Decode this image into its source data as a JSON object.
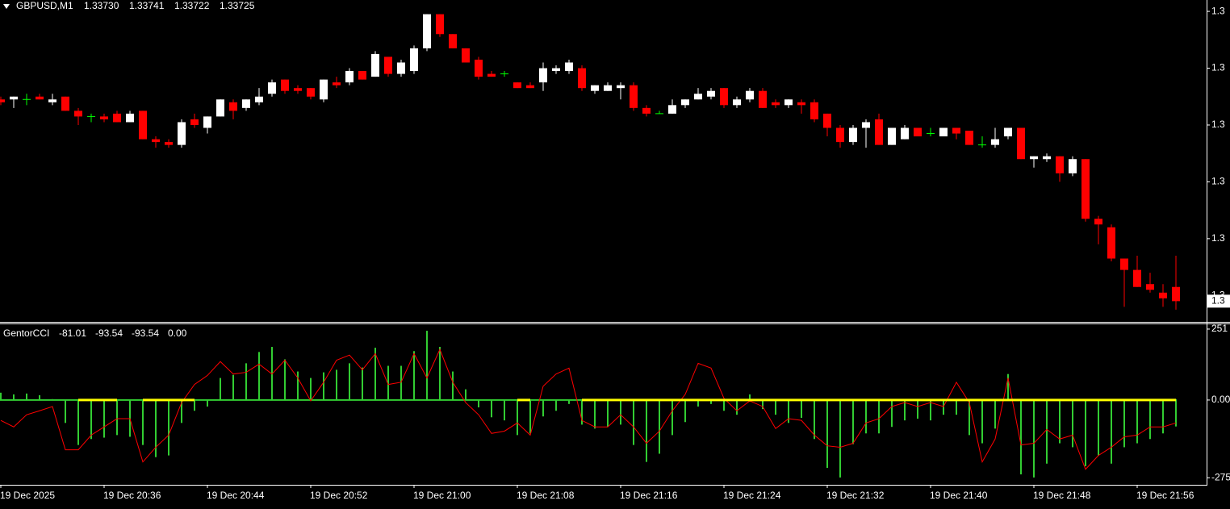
{
  "chart_data": [
    {
      "type": "candlestick",
      "title": "GBPUSD,M1",
      "header_values": [
        1.3373,
        1.33741,
        1.33722,
        1.33725
      ],
      "header_value_labels": [
        "1.33730",
        "1.33741",
        "1.33722",
        "1.33725"
      ],
      "categories": [
        "19 Dec 2025",
        null,
        null,
        null,
        null,
        null,
        null,
        null,
        "19 Dec 20:36",
        null,
        null,
        null,
        null,
        null,
        null,
        null,
        "19 Dec 20:44",
        null,
        null,
        null,
        null,
        null,
        null,
        null,
        "19 Dec 20:52",
        null,
        null,
        null,
        null,
        null,
        null,
        null,
        "19 Dec 21:00",
        null,
        null,
        null,
        null,
        null,
        null,
        null,
        "19 Dec 21:08",
        null,
        null,
        null,
        null,
        null,
        null,
        null,
        "19 Dec 21:16",
        null,
        null,
        null,
        null,
        null,
        null,
        null,
        "19 Dec 21:24",
        null,
        null,
        null,
        null,
        null,
        null,
        null,
        "19 Dec 21:32",
        null,
        null,
        null,
        null,
        null,
        null,
        null,
        "19 Dec 21:40",
        null,
        null,
        null,
        null,
        null,
        null,
        null,
        "19 Dec 21:48",
        null,
        null,
        null,
        null,
        null,
        null,
        null,
        "19 Dec 21:56",
        null,
        null,
        null
      ],
      "open": [
        1.33796,
        1.33796,
        1.33796,
        1.33797,
        1.33795,
        1.33797,
        1.33792,
        1.3379,
        1.3379,
        1.33791,
        1.33788,
        1.33792,
        1.33782,
        1.33781,
        1.3378,
        1.33789,
        1.33786,
        1.3379,
        1.33795,
        1.33793,
        1.33795,
        1.33798,
        1.33803,
        1.338,
        1.338,
        1.33796,
        1.33802,
        1.33802,
        1.33806,
        1.33804,
        1.33811,
        1.33805,
        1.33806,
        1.33814,
        1.33826,
        1.33819,
        1.33814,
        1.3381,
        1.33805,
        1.33805,
        1.33802,
        1.33801,
        1.33802,
        1.33806,
        1.33806,
        1.33807,
        1.33799,
        1.33799,
        1.338,
        1.33801,
        1.33793,
        1.33791,
        1.33791,
        1.33794,
        1.33796,
        1.33797,
        1.338,
        1.33794,
        1.33796,
        1.33799,
        1.33795,
        1.33794,
        1.33795,
        1.33795,
        1.33791,
        1.33786,
        1.33781,
        1.33786,
        1.33789,
        1.3378,
        1.33782,
        1.33786,
        1.33784,
        1.33783,
        1.33786,
        1.33785,
        1.3378,
        1.3378,
        1.33783,
        1.33786,
        1.33775,
        1.33775,
        1.33776,
        1.3377,
        1.33775,
        1.33754,
        1.33751,
        1.3374,
        1.33736,
        1.33731,
        1.33728,
        1.3373
      ],
      "high": [
        1.33797,
        1.33797,
        1.33798,
        1.33798,
        1.33798,
        1.33797,
        1.33793,
        1.33791,
        1.33791,
        1.33792,
        1.33792,
        1.33792,
        1.33783,
        1.33782,
        1.33789,
        1.33791,
        1.3379,
        1.33796,
        1.33796,
        1.33796,
        1.338,
        1.33803,
        1.33803,
        1.33801,
        1.338,
        1.33803,
        1.33804,
        1.33807,
        1.33806,
        1.33813,
        1.33811,
        1.3381,
        1.33815,
        1.33826,
        1.33826,
        1.33819,
        1.33814,
        1.33811,
        1.33806,
        1.33806,
        1.33802,
        1.33802,
        1.33809,
        1.33808,
        1.3381,
        1.33808,
        1.33801,
        1.33802,
        1.33802,
        1.33802,
        1.33794,
        1.33792,
        1.33796,
        1.33796,
        1.338,
        1.338,
        1.338,
        1.33797,
        1.338,
        1.338,
        1.33796,
        1.33796,
        1.33796,
        1.33796,
        1.33791,
        1.33787,
        1.33787,
        1.33789,
        1.33791,
        1.33786,
        1.33787,
        1.33786,
        1.33786,
        1.33786,
        1.33786,
        1.33785,
        1.33783,
        1.33786,
        1.33786,
        1.33786,
        1.33776,
        1.33777,
        1.33776,
        1.33776,
        1.33775,
        1.33755,
        1.33752,
        1.3374,
        1.33741,
        1.33735,
        1.33731,
        1.33741
      ],
      "low": [
        1.33794,
        1.33793,
        1.33794,
        1.33796,
        1.33794,
        1.33792,
        1.33787,
        1.33788,
        1.33788,
        1.33788,
        1.33788,
        1.33782,
        1.33779,
        1.33779,
        1.33779,
        1.33786,
        1.33784,
        1.3379,
        1.33789,
        1.33792,
        1.33794,
        1.33797,
        1.33798,
        1.33798,
        1.33796,
        1.33795,
        1.338,
        1.33801,
        1.33803,
        1.33804,
        1.33804,
        1.33804,
        1.33805,
        1.33813,
        1.33818,
        1.33814,
        1.33809,
        1.33803,
        1.33804,
        1.33804,
        1.338,
        1.338,
        1.33799,
        1.33805,
        1.33805,
        1.33799,
        1.33798,
        1.33799,
        1.33796,
        1.33792,
        1.3379,
        1.33791,
        1.33791,
        1.33793,
        1.33796,
        1.33796,
        1.33793,
        1.33793,
        1.33795,
        1.33793,
        1.33793,
        1.33793,
        1.33791,
        1.33788,
        1.33783,
        1.33779,
        1.3378,
        1.33779,
        1.3378,
        1.3378,
        1.33782,
        1.33783,
        1.33783,
        1.33783,
        1.33782,
        1.3378,
        1.33779,
        1.33779,
        1.33782,
        1.33775,
        1.33772,
        1.33774,
        1.33767,
        1.33769,
        1.33753,
        1.33745,
        1.33739,
        1.33723,
        1.3373,
        1.33728,
        1.33723,
        1.33722
      ],
      "close": [
        1.33795,
        1.33797,
        1.33796,
        1.33796,
        1.33796,
        1.33792,
        1.3379,
        1.3379,
        1.33789,
        1.33788,
        1.33791,
        1.33782,
        1.33781,
        1.3378,
        1.33788,
        1.33787,
        1.3379,
        1.33796,
        1.33792,
        1.33796,
        1.33797,
        1.33802,
        1.33799,
        1.33799,
        1.33797,
        1.33803,
        1.33801,
        1.33806,
        1.33803,
        1.33812,
        1.33805,
        1.33809,
        1.33814,
        1.33826,
        1.33819,
        1.33814,
        1.33809,
        1.33804,
        1.33804,
        1.33805,
        1.338,
        1.338,
        1.33807,
        1.33807,
        1.33809,
        1.338,
        1.33801,
        1.33801,
        1.33801,
        1.33793,
        1.33791,
        1.33791,
        1.33794,
        1.33796,
        1.33798,
        1.33799,
        1.33794,
        1.33796,
        1.33799,
        1.33793,
        1.33794,
        1.33796,
        1.33794,
        1.33789,
        1.33786,
        1.33781,
        1.33786,
        1.33788,
        1.3378,
        1.33786,
        1.33786,
        1.33783,
        1.33784,
        1.33786,
        1.33784,
        1.3378,
        1.3378,
        1.33782,
        1.33786,
        1.33775,
        1.33776,
        1.33776,
        1.3377,
        1.33775,
        1.33754,
        1.33752,
        1.3374,
        1.33736,
        1.3373,
        1.33729,
        1.33726,
        1.33725
      ],
      "up_color": "#ffffff",
      "down_color": "#ff0000",
      "doji_color": "#00ff00",
      "ylim": [
        1.33718,
        1.33831
      ],
      "yticks": [
        {
          "value": 1.33827,
          "label": "1.3"
        },
        {
          "value": 1.33807,
          "label": "1.3"
        },
        {
          "value": 1.33787,
          "label": "1.3"
        },
        {
          "value": 1.33767,
          "label": "1.3"
        },
        {
          "value": 1.33747,
          "label": "1.3"
        },
        {
          "value": 1.33727,
          "label": "1.3"
        }
      ],
      "current_price": {
        "value": 1.33725,
        "label": "1.3"
      },
      "grid": false
    },
    {
      "type": "combo",
      "title": "GentorCCI",
      "header_values": [
        -81.01,
        -93.54,
        -93.54,
        0
      ],
      "header_value_labels": [
        "-81.01",
        "-93.54",
        "-93.54",
        "0.00"
      ],
      "series": [
        {
          "style": "histogram",
          "color": "#32cd32",
          "values": [
            26,
            20,
            23,
            17,
            3,
            -81,
            -159,
            -138,
            -133,
            -124,
            -130,
            -159,
            -202,
            -196,
            -81,
            -38,
            -23,
            78,
            89,
            130,
            170,
            188,
            144,
            101,
            78,
            98,
            107,
            130,
            115,
            185,
            121,
            121,
            173,
            245,
            188,
            101,
            38,
            -26,
            -61,
            -72,
            -124,
            -118,
            -58,
            -38,
            -14,
            -87,
            -101,
            -95,
            -87,
            -159,
            -219,
            -190,
            -124,
            -78,
            -23,
            -14,
            -38,
            -52,
            20,
            -32,
            -52,
            -81,
            -63,
            -138,
            -240,
            -274,
            -156,
            -118,
            -118,
            -95,
            -72,
            -66,
            -72,
            -52,
            -52,
            -124,
            -153,
            -101,
            92,
            -263,
            -274,
            -225,
            -153,
            -167,
            -234,
            -196,
            -225,
            -167,
            -153,
            -138,
            -118,
            -93.54
          ]
        },
        {
          "style": "line",
          "color": "#ff0000",
          "values": [
            -72,
            -95,
            -52,
            -38,
            -23,
            -176,
            -176,
            -124,
            -95,
            -66,
            -66,
            -219,
            -167,
            -124,
            -9,
            55,
            87,
            136,
            92,
            98,
            127,
            92,
            141,
            78,
            -3,
            63,
            141,
            159,
            107,
            164,
            55,
            63,
            164,
            78,
            179,
            63,
            -9,
            -52,
            -118,
            -110,
            -81,
            -124,
            49,
            92,
            113,
            -72,
            -95,
            -95,
            -52,
            -95,
            -153,
            -110,
            -38,
            20,
            130,
            113,
            6,
            -38,
            -3,
            -23,
            -101,
            -66,
            -72,
            -124,
            -162,
            -167,
            -153,
            -81,
            -66,
            -23,
            -9,
            -23,
            -9,
            -23,
            63,
            -9,
            -219,
            -138,
            78,
            -159,
            -153,
            -104,
            -138,
            -124,
            -245,
            -196,
            -167,
            -130,
            -124,
            -95,
            -95,
            -81.01
          ]
        },
        {
          "style": "line",
          "color": "#ffff00",
          "values": [
            null,
            null,
            null,
            null,
            null,
            null,
            0,
            0,
            0,
            0,
            null,
            0,
            0,
            0,
            0,
            0,
            null,
            null,
            null,
            null,
            null,
            null,
            null,
            null,
            null,
            null,
            null,
            null,
            null,
            null,
            null,
            null,
            null,
            null,
            null,
            null,
            null,
            null,
            null,
            null,
            0,
            0,
            null,
            null,
            null,
            0,
            0,
            0,
            0,
            0,
            0,
            0,
            0,
            0,
            0,
            0,
            0,
            0,
            0,
            0,
            0,
            0,
            0,
            0,
            0,
            0,
            0,
            0,
            0,
            0,
            0,
            0,
            0,
            0,
            0,
            0,
            0,
            0,
            0,
            0,
            0,
            0,
            0,
            0,
            0,
            0,
            0,
            0,
            0,
            0,
            0,
            0
          ]
        }
      ],
      "ylim": [
        -297,
        268
      ],
      "yticks": [
        251,
        {
          "value": 0,
          "label": "0.00"
        },
        -275
      ],
      "zero_line_color": "#32cd32"
    }
  ]
}
